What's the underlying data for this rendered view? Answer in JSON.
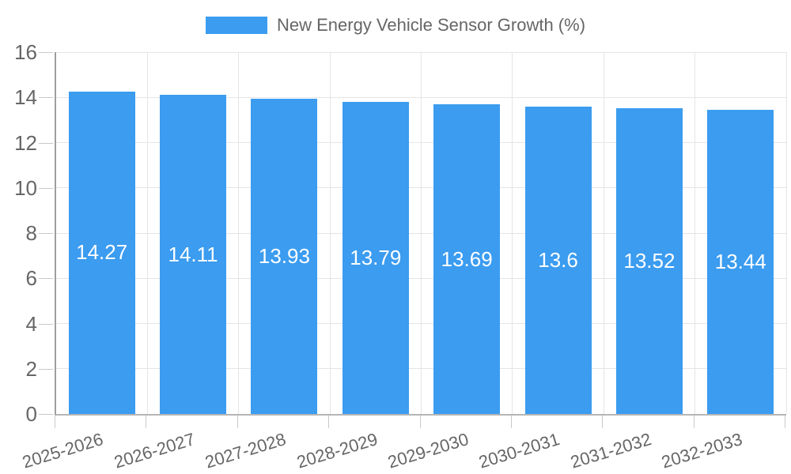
{
  "legend": {
    "label": "New Energy Vehicle Sensor Growth (%)"
  },
  "chart_data": {
    "type": "bar",
    "title": "New Energy Vehicle Sensor Growth (%)",
    "categories": [
      "2025-2026",
      "2026-2027",
      "2027-2028",
      "2028-2029",
      "2029-2030",
      "2030-2031",
      "2031-2032",
      "2032-2033"
    ],
    "values": [
      14.27,
      14.11,
      13.93,
      13.79,
      13.69,
      13.6,
      13.52,
      13.44
    ],
    "bar_labels": [
      "14.27",
      "14.11",
      "13.93",
      "13.79",
      "13.69",
      "13.6",
      "13.52",
      "13.44"
    ],
    "xlabel": "",
    "ylabel": "",
    "ylim": [
      0,
      16
    ],
    "yticks": [
      0,
      2,
      4,
      6,
      8,
      10,
      12,
      14,
      16
    ],
    "grid": true,
    "legend_position": "top",
    "x_label_rotation_deg": -17,
    "colors": {
      "bar": "#3B9CF0",
      "grid": "#E5E5E5",
      "axis_left": "#9E9E9E",
      "axis_bottom": "#B5B5B5",
      "tick": "#C9C9C9",
      "tick_label": "#666666",
      "bar_label": "#FFFFFF",
      "background": "#FFFFFF"
    }
  }
}
